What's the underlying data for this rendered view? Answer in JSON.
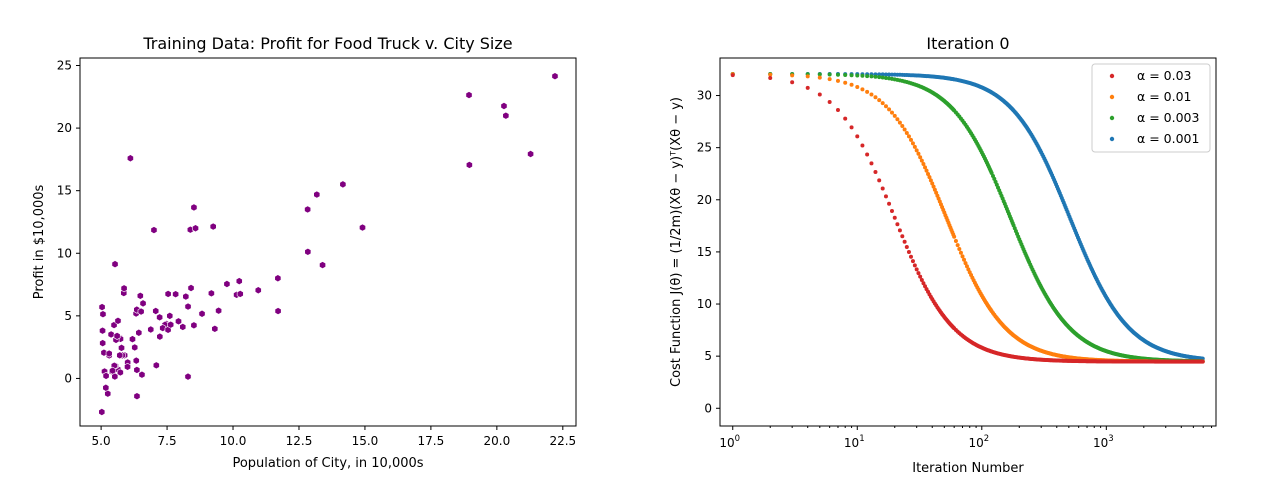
{
  "chart_data": [
    {
      "type": "scatter",
      "title": "Training Data: Profit for Food Truck v. City Size",
      "xlabel": "Population of City, in 10,000s",
      "ylabel": "Profit in $10,000s",
      "xlim": [
        4.2,
        23.0
      ],
      "ylim": [
        -3.8,
        25.6
      ],
      "xticks": [
        5.0,
        7.5,
        10.0,
        12.5,
        15.0,
        17.5,
        20.0,
        22.5
      ],
      "xtick_labels": [
        "5.0",
        "7.5",
        "10.0",
        "12.5",
        "15.0",
        "17.5",
        "20.0",
        "22.5"
      ],
      "yticks": [
        0,
        5,
        10,
        15,
        20,
        25
      ],
      "ytick_labels": [
        "0",
        "5",
        "10",
        "15",
        "20",
        "25"
      ],
      "marker": "hexagon",
      "color": "#800080",
      "points": [
        [
          6.1101,
          17.592
        ],
        [
          5.5277,
          9.1302
        ],
        [
          8.5186,
          13.662
        ],
        [
          7.0032,
          11.854
        ],
        [
          5.8598,
          6.8233
        ],
        [
          8.3829,
          11.886
        ],
        [
          7.4764,
          4.3483
        ],
        [
          8.5781,
          12.0
        ],
        [
          6.4862,
          6.5987
        ],
        [
          5.0546,
          3.8166
        ],
        [
          5.7107,
          3.2522
        ],
        [
          14.164,
          15.505
        ],
        [
          5.734,
          3.1551
        ],
        [
          8.4084,
          7.2258
        ],
        [
          5.6407,
          0.71618
        ],
        [
          5.3794,
          3.5129
        ],
        [
          6.3654,
          5.3048
        ],
        [
          5.1301,
          0.56077
        ],
        [
          6.4296,
          3.6518
        ],
        [
          7.0708,
          5.3893
        ],
        [
          6.1891,
          3.1386
        ],
        [
          20.27,
          21.767
        ],
        [
          5.4901,
          4.263
        ],
        [
          6.3261,
          5.1875
        ],
        [
          5.5649,
          3.0825
        ],
        [
          18.945,
          22.638
        ],
        [
          12.828,
          13.501
        ],
        [
          10.957,
          7.0467
        ],
        [
          13.176,
          14.692
        ],
        [
          22.203,
          24.147
        ],
        [
          5.2524,
          -1.22
        ],
        [
          6.5894,
          5.9966
        ],
        [
          9.2482,
          12.134
        ],
        [
          5.8918,
          1.8495
        ],
        [
          8.2111,
          6.5426
        ],
        [
          7.9334,
          4.5623
        ],
        [
          8.0959,
          4.1164
        ],
        [
          5.6063,
          3.3928
        ],
        [
          12.836,
          10.117
        ],
        [
          6.3534,
          5.4974
        ],
        [
          5.4069,
          0.55657
        ],
        [
          6.8825,
          3.9115
        ],
        [
          11.708,
          5.3854
        ],
        [
          5.7737,
          2.4406
        ],
        [
          7.8247,
          6.7318
        ],
        [
          7.0931,
          1.0463
        ],
        [
          5.0702,
          5.1337
        ],
        [
          5.8014,
          1.844
        ],
        [
          11.7,
          8.0043
        ],
        [
          5.5416,
          1.0179
        ],
        [
          7.5402,
          6.7504
        ],
        [
          5.3077,
          1.8396
        ],
        [
          7.4239,
          4.2885
        ],
        [
          7.6031,
          4.9981
        ],
        [
          6.3328,
          1.4233
        ],
        [
          6.3589,
          -1.4211
        ],
        [
          6.2742,
          2.4756
        ],
        [
          5.6397,
          4.6042
        ],
        [
          9.3102,
          3.9624
        ],
        [
          9.4536,
          5.4141
        ],
        [
          8.8254,
          5.1694
        ],
        [
          5.1793,
          -0.74279
        ],
        [
          21.279,
          17.929
        ],
        [
          14.908,
          12.054
        ],
        [
          18.959,
          17.054
        ],
        [
          7.2182,
          4.8852
        ],
        [
          8.2951,
          5.7442
        ],
        [
          10.236,
          7.7754
        ],
        [
          5.4994,
          1.0173
        ],
        [
          20.341,
          20.992
        ],
        [
          10.136,
          6.6799
        ],
        [
          7.3345,
          4.0259
        ],
        [
          6.0062,
          1.2784
        ],
        [
          7.2259,
          3.3411
        ],
        [
          5.0269,
          -2.6807
        ],
        [
          6.5479,
          0.29678
        ],
        [
          7.5386,
          3.8845
        ],
        [
          5.0365,
          5.7014
        ],
        [
          10.274,
          6.7526
        ],
        [
          5.1077,
          2.0576
        ],
        [
          5.7292,
          0.47953
        ],
        [
          5.1884,
          0.20421
        ],
        [
          6.3557,
          0.67861
        ],
        [
          9.7687,
          7.5435
        ],
        [
          6.5159,
          5.3436
        ],
        [
          8.5172,
          4.2415
        ],
        [
          9.1802,
          6.7981
        ],
        [
          6.002,
          0.92695
        ],
        [
          5.5204,
          0.152
        ],
        [
          5.0594,
          2.8214
        ],
        [
          5.7077,
          1.8451
        ],
        [
          7.6366,
          4.2959
        ],
        [
          5.8707,
          7.2029
        ],
        [
          5.3054,
          1.9869
        ],
        [
          8.2934,
          0.14454
        ],
        [
          13.394,
          9.0551
        ],
        [
          5.4369,
          0.61705
        ]
      ]
    },
    {
      "type": "scatter",
      "title": "Iteration 0",
      "xlabel": "Iteration Number",
      "ylabel": "Cost Function J(θ) = (1/2m)(Xθ − y)ᵀ(Xθ − y)",
      "xscale": "log",
      "xlim": [
        0.79,
        7600
      ],
      "ylim": [
        -1.7,
        33.6
      ],
      "xticks": [
        1,
        10,
        100,
        1000
      ],
      "xtick_labels": [
        "10",
        "10",
        "10",
        "10"
      ],
      "xtick_exponents": [
        "0",
        "1",
        "2",
        "3"
      ],
      "yticks": [
        0,
        5,
        10,
        15,
        20,
        25,
        30
      ],
      "ytick_labels": [
        "0",
        "5",
        "10",
        "15",
        "20",
        "25",
        "30"
      ],
      "legend_location": "upper right",
      "cost_start": 32.07,
      "cost_min": 4.477,
      "iterations": 6000,
      "series": [
        {
          "name": "α = 0.03",
          "alpha": 0.03,
          "color": "#d62728",
          "half_iteration": 20,
          "steepness": 1.85
        },
        {
          "name": "α = 0.01",
          "alpha": 0.01,
          "color": "#ff7f0e",
          "half_iteration": 52,
          "steepness": 1.85
        },
        {
          "name": "α = 0.003",
          "alpha": 0.003,
          "color": "#2ca02c",
          "half_iteration": 170,
          "steepness": 1.85
        },
        {
          "name": "α = 0.001",
          "alpha": 0.001,
          "color": "#1f77b4",
          "half_iteration": 510,
          "steepness": 1.85
        }
      ]
    }
  ]
}
